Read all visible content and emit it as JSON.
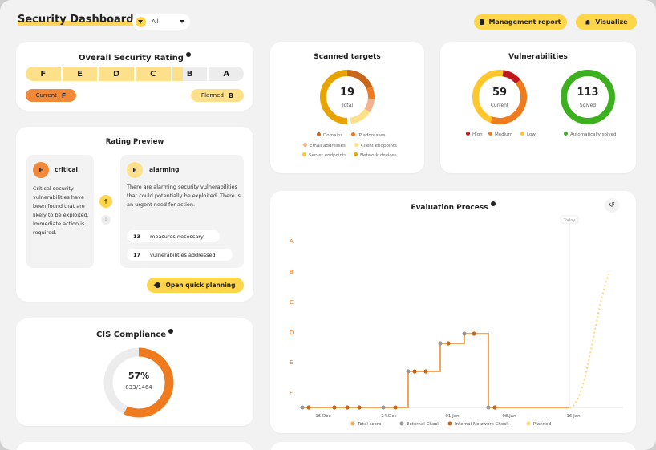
{
  "header": {
    "title": "Security Dashboard",
    "filter_value": "All",
    "management_label": "Management report",
    "visualize_label": "Visualize"
  },
  "rating": {
    "title": "Overall Security Rating",
    "grades": [
      "F",
      "E",
      "D",
      "C",
      "B",
      "A"
    ],
    "current_label": "Current",
    "current_grade": "F",
    "planned_label": "Planned",
    "planned_grade": "B"
  },
  "preview": {
    "title": "Rating Preview",
    "left": {
      "grade": "F",
      "label": "critical",
      "text": "Critical security vulnerabilities have been found that are likely to be exploited. Immediate action is required."
    },
    "right": {
      "grade": "E",
      "label": "alarming",
      "text": "There are alarming security vulnerabilities that could potentially be exploited. There is an urgent need for action.",
      "stats": [
        {
          "value": "13",
          "label": "measures necessary"
        },
        {
          "value": "17",
          "label": "vulnerabilities addressed"
        }
      ]
    },
    "button_label": "Open quick planning"
  },
  "cis": {
    "title": "CIS Compliance",
    "percent_label": "57%",
    "fraction_label": "833/1464",
    "fraction": 0.57
  },
  "scanned": {
    "title": "Scanned targets",
    "total": "19",
    "total_label": "Total",
    "legend": [
      {
        "label": "Domains",
        "color": "#c9661a"
      },
      {
        "label": "IP addresses",
        "color": "#ef7b1e"
      },
      {
        "label": "Email addresses",
        "color": "#f6b08a"
      },
      {
        "label": "Client endpoints",
        "color": "#ffe08a"
      },
      {
        "label": "Server endpoints",
        "color": "#ffc72c"
      },
      {
        "label": "Network devices",
        "color": "#e8a300"
      }
    ]
  },
  "vuln": {
    "title": "Vulnerabilities",
    "current_value": "59",
    "current_label": "Current",
    "solved_value": "113",
    "solved_label": "Solved",
    "legend_left": [
      {
        "label": "High",
        "color": "#c0161d"
      },
      {
        "label": "Medium",
        "color": "#ef7b1e"
      },
      {
        "label": "Low",
        "color": "#ffc72c"
      }
    ],
    "legend_right": [
      {
        "label": "Automatically solved",
        "color": "#3cb01e"
      }
    ]
  },
  "chart_data": {
    "type": "line",
    "title": "Evaluation Process",
    "today_label": "Today",
    "y_categories": [
      "A",
      "B",
      "C",
      "D",
      "E",
      "F"
    ],
    "x_ticks": [
      "16.Dec",
      "24.Dec",
      "01.Jan",
      "08.Jan",
      "16.Jan"
    ],
    "legend": [
      {
        "label": "Total score",
        "color": "#f5a55a"
      },
      {
        "label": "External Check",
        "color": "#999999"
      },
      {
        "label": "Internal Netzwork Check",
        "color": "#c9661a"
      },
      {
        "label": "Planned",
        "color": "#ffd77a"
      }
    ]
  },
  "colors": {
    "accent": "#ffd54a",
    "orange": "#ef7b1e",
    "green": "#3cb01e",
    "red": "#c0161d"
  }
}
